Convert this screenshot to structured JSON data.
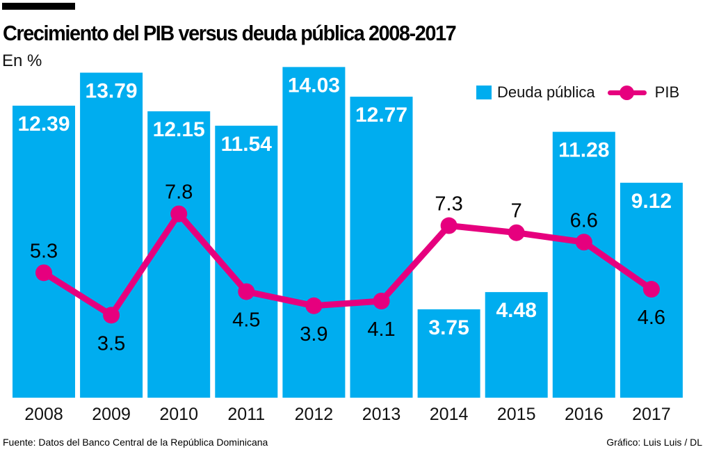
{
  "title": "Crecimiento del PIB versus deuda pública 2008-2017",
  "unit_label": "En %",
  "legend": {
    "bars": "Deuda pública",
    "line": "PIB",
    "placement": "top-right"
  },
  "footer": {
    "source": "Fuente: Datos del Banco Central de la República Dominicana",
    "credit": "Gráfico: Luis Luis / DL"
  },
  "colors": {
    "bars": "#00ADEF",
    "line": "#E6007E",
    "bar_label": "#FFFFFF",
    "line_label": "#000000"
  },
  "chart_data": {
    "type": "bar+line",
    "categories": [
      "2008",
      "2009",
      "2010",
      "2011",
      "2012",
      "2013",
      "2014",
      "2015",
      "2016",
      "2017"
    ],
    "series": [
      {
        "name": "Deuda pública",
        "type": "bar",
        "values": [
          12.39,
          13.79,
          12.15,
          11.54,
          14.03,
          12.77,
          3.75,
          4.48,
          11.28,
          9.12
        ],
        "labels": [
          "12.39",
          "13.79",
          "12.15",
          "11.54",
          "14.03",
          "12.77",
          "3.75",
          "4.48",
          "11.28",
          "9.12"
        ]
      },
      {
        "name": "PIB",
        "type": "line",
        "values": [
          5.3,
          3.5,
          7.8,
          4.5,
          3.9,
          4.1,
          7.3,
          7,
          6.6,
          4.6
        ],
        "labels": [
          "5.3",
          "3.5",
          "7.8",
          "4.5",
          "3.9",
          "4.1",
          "7.3",
          "7",
          "6.6",
          "4.6"
        ]
      }
    ],
    "ylim": [
      0,
      14.03
    ],
    "grid": false
  }
}
